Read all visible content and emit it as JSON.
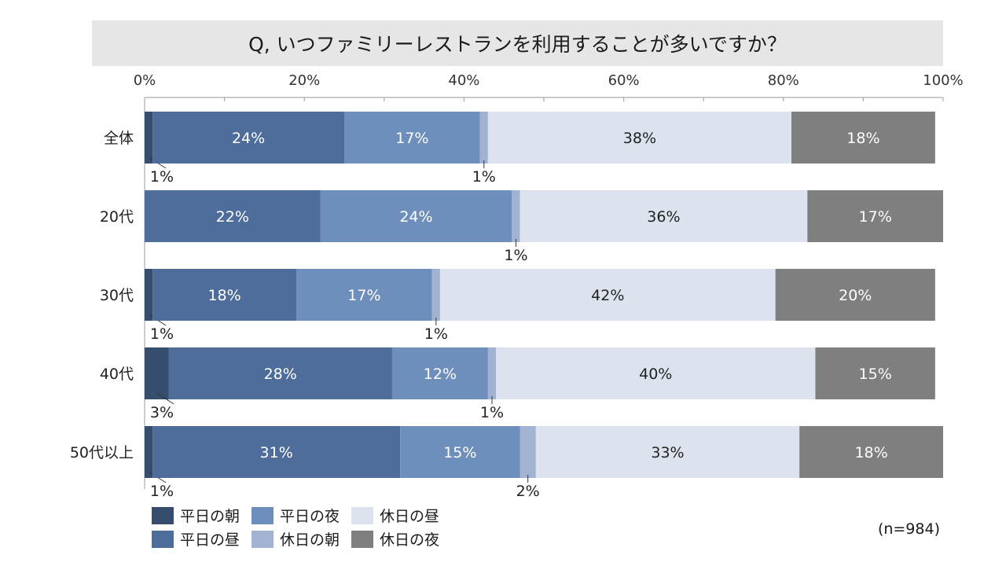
{
  "chart_data": {
    "type": "bar",
    "orientation": "horizontal",
    "stacked": true,
    "title": "Q, いつファミリーレストランを利用することが多いですか？",
    "note": "(n=984)",
    "categories": [
      "全体",
      "20代",
      "30代",
      "40代",
      "50代以上"
    ],
    "x_ticks": [
      "0%",
      "20%",
      "40%",
      "60%",
      "80%",
      "100%"
    ],
    "xlim": [
      0,
      100
    ],
    "legend_placement": "bottom-left",
    "series": [
      {
        "name": "平日の朝",
        "color": "#374d6e",
        "values": [
          1,
          0,
          1,
          3,
          1
        ],
        "labels": [
          "1%",
          "",
          "1%",
          "3%",
          "1%"
        ]
      },
      {
        "name": "平日の昼",
        "color": "#4e6d9b",
        "values": [
          24,
          22,
          18,
          28,
          31
        ],
        "labels": [
          "24%",
          "22%",
          "18%",
          "28%",
          "31%"
        ]
      },
      {
        "name": "平日の夜",
        "color": "#6e8ebb",
        "values": [
          17,
          24,
          17,
          12,
          15
        ],
        "labels": [
          "17%",
          "24%",
          "17%",
          "12%",
          "15%"
        ]
      },
      {
        "name": "休日の朝",
        "color": "#a2b3d2",
        "values": [
          1,
          1,
          1,
          1,
          2
        ],
        "labels": [
          "1%",
          "1%",
          "1%",
          "1%",
          "2%"
        ]
      },
      {
        "name": "休日の昼",
        "color": "#dde3ee",
        "values": [
          38,
          36,
          42,
          40,
          33
        ],
        "labels": [
          "38%",
          "36%",
          "42%",
          "40%",
          "33%"
        ]
      },
      {
        "name": "休日の夜",
        "color": "#7f7f7f",
        "values": [
          18,
          17,
          20,
          15,
          18
        ],
        "labels": [
          "18%",
          "17%",
          "20%",
          "15%",
          "18%"
        ]
      }
    ],
    "legend_order": [
      "平日の朝",
      "平日の夜",
      "休日の昼",
      "平日の昼",
      "休日の朝",
      "休日の夜"
    ]
  }
}
